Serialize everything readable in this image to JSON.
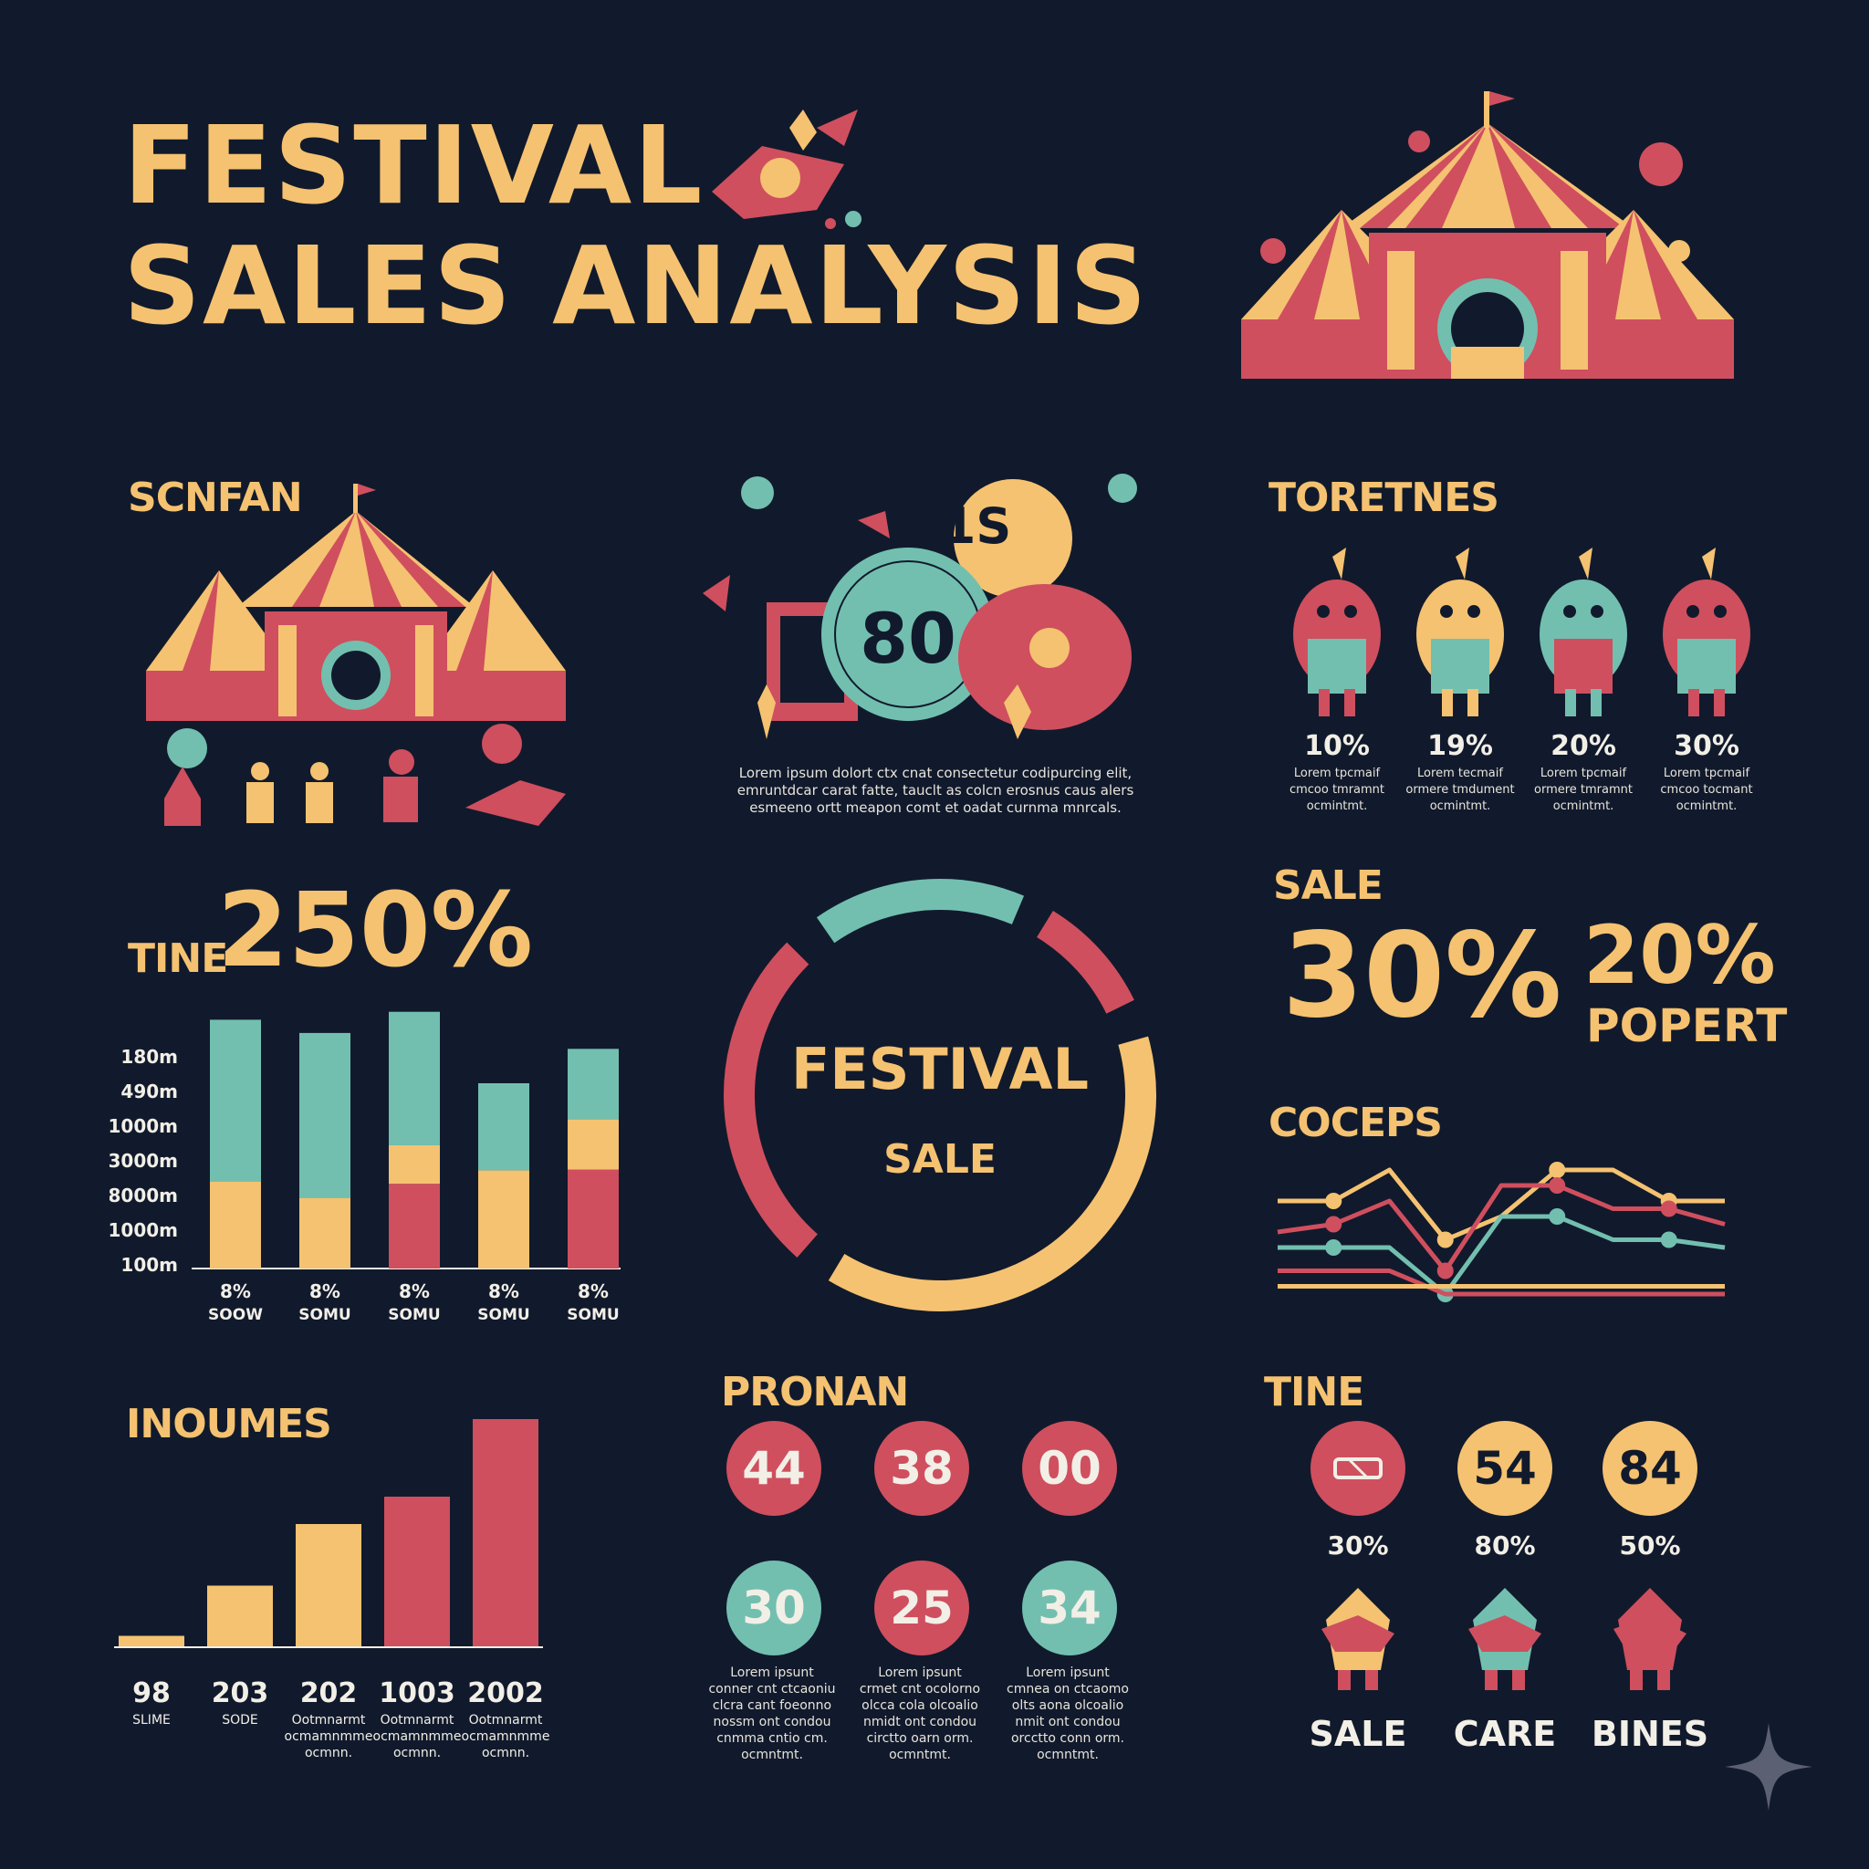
{
  "title": {
    "line1": "FESTIVAL",
    "line2": "SALES ANALYSIS"
  },
  "colors": {
    "background": "#111a2c",
    "yellow": "#f5c271",
    "teal": "#72bfb0",
    "red": "#cf4f5e",
    "text": "#f2efe7"
  },
  "sections": {
    "scnfan": "SCNFAN",
    "toretnes": "TORETNES",
    "tine_big_label": "TINE",
    "tine_big_value": "250%",
    "sale_label": "SALE",
    "sale_value1": "30%",
    "sale_value2": "20%",
    "sale_value2_label": "POPERT",
    "coceps": "COCEPS",
    "inoumes": "INOUMES",
    "pronan": "PRONAN",
    "tine2": "TINE"
  },
  "center_illustration": {
    "badge_large": "80",
    "badge_small": "1S",
    "caption": [
      "Lorem ipsum dolort ctx cnat consectetur codipurcing elit,",
      "emruntdcar carat fatte, tauclt as colcn erosnus caus alers",
      "esmeeno ortt meapon comt et oadat curnma mnrcals."
    ]
  },
  "characters": [
    {
      "pct": "10%",
      "desc": [
        "Lorem tpcmaif",
        "cmcoo tmramnt",
        "ocmintmt."
      ],
      "icon": "creature-icon"
    },
    {
      "pct": "19%",
      "desc": [
        "Lorem tecmaif",
        "ormere tmdument",
        "ocmintmt."
      ],
      "icon": "creature-icon"
    },
    {
      "pct": "20%",
      "desc": [
        "Lorem tpcmaif",
        "ormere tmramnt",
        "ocmintmt."
      ],
      "icon": "creature-icon"
    },
    {
      "pct": "30%",
      "desc": [
        "Lorem tpcmaif",
        "cmcoo tocmant",
        "ocmintmt."
      ],
      "icon": "creature-icon"
    }
  ],
  "donut": {
    "title": "FESTIVAL",
    "subtitle": "SALE"
  },
  "chart_data": [
    {
      "type": "bar",
      "stacked": true,
      "y_ticks": [
        "180m",
        "490m",
        "1000m",
        "3000m",
        "8000m",
        "1000m",
        "100m"
      ],
      "categories": [
        "8%",
        "8%",
        "8%",
        "8%",
        "8%"
      ],
      "sub_labels": [
        "SOOW",
        "SOMU",
        "SOMU",
        "SOMU",
        "SOMU"
      ],
      "segments_bottom_to_top": [
        {
          "colors": [
            "#f5c271",
            "#72bfb0"
          ],
          "fractions": [
            0.35,
            0.65
          ]
        },
        {
          "colors": [
            "#f5c271",
            "#72bfb0"
          ],
          "fractions": [
            0.3,
            0.7
          ]
        },
        {
          "colors": [
            "#cf4f5e",
            "#f5c271",
            "#72bfb0"
          ],
          "fractions": [
            0.33,
            0.15,
            0.52
          ]
        },
        {
          "colors": [
            "#f5c271",
            "#72bfb0"
          ],
          "fractions": [
            0.53,
            0.47
          ]
        },
        {
          "colors": [
            "#cf4f5e",
            "#f5c271",
            "#72bfb0"
          ],
          "fractions": [
            0.45,
            0.23,
            0.32
          ]
        }
      ],
      "totals_relative": [
        0.94,
        0.89,
        0.97,
        0.7,
        0.83
      ]
    },
    {
      "type": "bar",
      "categories": [
        "98",
        "203",
        "202",
        "1003",
        "2002"
      ],
      "sub_labels": [
        [
          "SLIME"
        ],
        [
          "SODE"
        ],
        [
          "Ootmnarmt",
          "ocmamnmme",
          "ocmnn."
        ],
        [
          "Ootmnarmt",
          "ocmamnmme",
          "ocmnn."
        ],
        [
          "Ootmnarmt",
          "ocmamnmme",
          "ocmnn."
        ]
      ],
      "values_relative": [
        0.05,
        0.27,
        0.54,
        0.66,
        1.0
      ],
      "colors": [
        "#f5c271",
        "#f5c271",
        "#f5c271",
        "#cf4f5e",
        "#cf4f5e"
      ]
    },
    {
      "type": "pie",
      "segments": [
        {
          "color": "#cf4f5e",
          "fraction": 0.09
        },
        {
          "color": "#f5c271",
          "fraction": 0.38
        },
        {
          "color": "#cf4f5e",
          "fraction": 0.26
        },
        {
          "color": "#72bfb0",
          "fraction": 0.16
        }
      ]
    },
    {
      "type": "line",
      "series": [
        {
          "color": "#f5c271",
          "values": [
            0.3,
            0.3,
            0.1,
            0.55,
            0.4,
            0.1,
            0.1,
            0.3,
            0.3
          ]
        },
        {
          "color": "#cf4f5e",
          "values": [
            0.5,
            0.45,
            0.3,
            0.75,
            0.2,
            0.2,
            0.35,
            0.35,
            0.45
          ]
        },
        {
          "color": "#72bfb0",
          "values": [
            0.6,
            0.6,
            0.6,
            0.9,
            0.4,
            0.4,
            0.55,
            0.55,
            0.6
          ]
        },
        {
          "color": "#cf4f5e",
          "values": [
            0.75,
            0.75,
            0.75,
            0.9,
            0.9,
            0.9,
            0.9,
            0.9,
            0.9
          ]
        },
        {
          "color": "#f5c271",
          "values": [
            0.85,
            0.85,
            0.85,
            0.85,
            0.85,
            0.85,
            0.85,
            0.85,
            0.85
          ]
        }
      ]
    }
  ],
  "pronan": {
    "circles": [
      {
        "value": "44",
        "color": "#cf4f5e",
        "text": "#f2efe7"
      },
      {
        "value": "38",
        "color": "#cf4f5e",
        "text": "#f2efe7"
      },
      {
        "value": "00",
        "color": "#cf4f5e",
        "text": "#f2efe7"
      },
      {
        "value": "30",
        "color": "#72bfb0",
        "text": "#f2efe7"
      },
      {
        "value": "25",
        "color": "#cf4f5e",
        "text": "#f2efe7"
      },
      {
        "value": "34",
        "color": "#72bfb0",
        "text": "#f2efe7"
      }
    ],
    "captions": [
      [
        "Lorem ipsunt",
        "conner cnt ctcaoniu",
        "clcra cant foeonno",
        "nossm ont condou",
        "cnmma cntio cm.",
        "ocmntmt."
      ],
      [
        "Lorem ipsunt",
        "crmet cnt ocolorno",
        "olcca cola olcoalio",
        "nmidt ont condou",
        "circtto oarn orm.",
        "ocmntmt."
      ],
      [
        "Lorem ipsunt",
        "cmnea on ctcaomo",
        "olts aona olcoalio",
        "nmit ont condou",
        "orcctto conn orm.",
        "ocmntmt."
      ]
    ]
  },
  "tine2": {
    "circles": [
      {
        "value": "",
        "icon": "ticket-icon",
        "color": "#cf4f5e",
        "pct": "30%"
      },
      {
        "value": "54",
        "color": "#f5c271",
        "pct": "80%"
      },
      {
        "value": "84",
        "color": "#f5c271",
        "pct": "50%"
      }
    ],
    "labels": [
      "SALE",
      "CARE",
      "BINES"
    ]
  }
}
